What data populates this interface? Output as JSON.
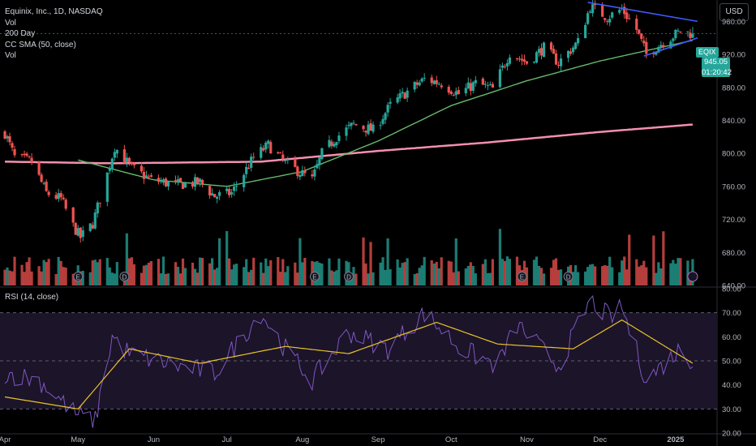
{
  "legend": {
    "title": "Equinix, Inc., 1D, NASDAQ",
    "lines": [
      "Vol",
      "200 Day",
      "CC SMA (50, close)",
      "Vol"
    ]
  },
  "rsi_legend": "RSI (14, close)",
  "currency": "USD",
  "price_tag": {
    "symbol": "EQIX",
    "price": "945.05",
    "countdown": "01:20:42"
  },
  "colors": {
    "up": "#26a69a",
    "down": "#ef5350",
    "sma200": "#f48fb1",
    "sma50": "#66bb6a",
    "trendline": "#3f5bff",
    "rsi": "#7e57c2",
    "rsi_ma": "#e6c229",
    "band": "#1c1429"
  },
  "chart_data": [
    {
      "type": "candlestick",
      "title": "Equinix, Inc., 1D, NASDAQ",
      "ylim": [
        640,
        980
      ],
      "y_ticks": [
        "960.00",
        "920.00",
        "880.00",
        "840.00",
        "800.00",
        "760.00",
        "720.00",
        "680.00",
        "640.00"
      ],
      "x_ticks": [
        "Apr",
        "May",
        "Jun",
        "Jul",
        "Aug",
        "Sep",
        "Oct",
        "Nov",
        "Dec",
        "2025"
      ],
      "last_price": 945.05,
      "price_anchors": [
        {
          "date": "2024-04-01",
          "close": 825
        },
        {
          "date": "2024-04-05",
          "close": 795
        },
        {
          "date": "2024-04-12",
          "close": 790
        },
        {
          "date": "2024-04-18",
          "close": 752
        },
        {
          "date": "2024-04-24",
          "close": 745
        },
        {
          "date": "2024-04-29",
          "close": 712
        },
        {
          "date": "2024-05-02",
          "close": 698
        },
        {
          "date": "2024-05-07",
          "close": 715
        },
        {
          "date": "2024-05-13",
          "close": 775
        },
        {
          "date": "2024-05-16",
          "close": 808
        },
        {
          "date": "2024-05-23",
          "close": 782
        },
        {
          "date": "2024-05-31",
          "close": 768
        },
        {
          "date": "2024-06-10",
          "close": 762
        },
        {
          "date": "2024-06-20",
          "close": 765
        },
        {
          "date": "2024-06-26",
          "close": 748
        },
        {
          "date": "2024-07-03",
          "close": 752
        },
        {
          "date": "2024-07-12",
          "close": 795
        },
        {
          "date": "2024-07-18",
          "close": 810
        },
        {
          "date": "2024-07-25",
          "close": 788
        },
        {
          "date": "2024-08-05",
          "close": 768
        },
        {
          "date": "2024-08-09",
          "close": 800
        },
        {
          "date": "2024-08-15",
          "close": 820
        },
        {
          "date": "2024-08-22",
          "close": 835
        },
        {
          "date": "2024-08-30",
          "close": 828
        },
        {
          "date": "2024-09-06",
          "close": 858
        },
        {
          "date": "2024-09-13",
          "close": 875
        },
        {
          "date": "2024-09-20",
          "close": 890
        },
        {
          "date": "2024-09-27",
          "close": 885
        },
        {
          "date": "2024-10-04",
          "close": 872
        },
        {
          "date": "2024-10-11",
          "close": 885
        },
        {
          "date": "2024-10-18",
          "close": 878
        },
        {
          "date": "2024-10-25",
          "close": 922
        },
        {
          "date": "2024-11-01",
          "close": 910
        },
        {
          "date": "2024-11-08",
          "close": 928
        },
        {
          "date": "2024-11-14",
          "close": 910
        },
        {
          "date": "2024-11-22",
          "close": 935
        },
        {
          "date": "2024-11-27",
          "close": 978
        },
        {
          "date": "2024-12-04",
          "close": 965
        },
        {
          "date": "2024-12-10",
          "close": 975
        },
        {
          "date": "2024-12-16",
          "close": 950
        },
        {
          "date": "2024-12-20",
          "close": 920
        },
        {
          "date": "2024-12-27",
          "close": 935
        },
        {
          "date": "2025-01-03",
          "close": 948
        },
        {
          "date": "2025-01-08",
          "close": 945.05
        }
      ],
      "sma200_anchors": [
        {
          "date": "2024-04-01",
          "value": 790
        },
        {
          "date": "2024-05-15",
          "value": 788
        },
        {
          "date": "2024-07-15",
          "value": 790
        },
        {
          "date": "2024-09-01",
          "value": 803
        },
        {
          "date": "2024-10-15",
          "value": 813
        },
        {
          "date": "2024-12-01",
          "value": 826
        },
        {
          "date": "2025-01-08",
          "value": 835
        }
      ],
      "sma50_anchors": [
        {
          "date": "2024-05-01",
          "value": 792
        },
        {
          "date": "2024-06-01",
          "value": 768
        },
        {
          "date": "2024-07-01",
          "value": 760
        },
        {
          "date": "2024-08-01",
          "value": 778
        },
        {
          "date": "2024-09-01",
          "value": 815
        },
        {
          "date": "2024-10-01",
          "value": 858
        },
        {
          "date": "2024-11-01",
          "value": 888
        },
        {
          "date": "2024-12-01",
          "value": 912
        },
        {
          "date": "2025-01-08",
          "value": 937
        }
      ],
      "trendlines": [
        {
          "start": {
            "date": "2024-11-26",
            "value": 983
          },
          "end": {
            "date": "2025-01-10",
            "value": 960
          }
        },
        {
          "start": {
            "date": "2024-12-19",
            "value": 918
          },
          "end": {
            "date": "2025-01-10",
            "value": 940
          }
        }
      ]
    },
    {
      "type": "line",
      "title": "RSI (14, close)",
      "ylim": [
        20,
        80
      ],
      "y_ticks": [
        "80.00",
        "70.00",
        "60.00",
        "50.00",
        "40.00",
        "30.00",
        "20.00"
      ],
      "bands": [
        30,
        70
      ],
      "rsi_anchors": [
        {
          "date": "2024-04-01",
          "value": 45
        },
        {
          "date": "2024-04-15",
          "value": 42
        },
        {
          "date": "2024-04-30",
          "value": 28
        },
        {
          "date": "2024-05-08",
          "value": 25
        },
        {
          "date": "2024-05-15",
          "value": 60
        },
        {
          "date": "2024-05-22",
          "value": 53
        },
        {
          "date": "2024-06-10",
          "value": 48
        },
        {
          "date": "2024-06-26",
          "value": 45
        },
        {
          "date": "2024-07-15",
          "value": 70
        },
        {
          "date": "2024-07-25",
          "value": 55
        },
        {
          "date": "2024-08-05",
          "value": 42
        },
        {
          "date": "2024-08-20",
          "value": 62
        },
        {
          "date": "2024-09-05",
          "value": 55
        },
        {
          "date": "2024-09-20",
          "value": 70
        },
        {
          "date": "2024-10-05",
          "value": 55
        },
        {
          "date": "2024-10-20",
          "value": 48
        },
        {
          "date": "2024-10-28",
          "value": 65
        },
        {
          "date": "2024-11-14",
          "value": 48
        },
        {
          "date": "2024-11-27",
          "value": 75
        },
        {
          "date": "2024-12-05",
          "value": 68
        },
        {
          "date": "2024-12-10",
          "value": 72
        },
        {
          "date": "2024-12-20",
          "value": 42
        },
        {
          "date": "2025-01-03",
          "value": 55
        },
        {
          "date": "2025-01-08",
          "value": 50
        }
      ],
      "rsi_ma_anchors": [
        {
          "date": "2024-04-01",
          "value": 35
        },
        {
          "date": "2024-05-01",
          "value": 30
        },
        {
          "date": "2024-05-22",
          "value": 55
        },
        {
          "date": "2024-06-20",
          "value": 49
        },
        {
          "date": "2024-07-25",
          "value": 56
        },
        {
          "date": "2024-08-20",
          "value": 53
        },
        {
          "date": "2024-09-25",
          "value": 66
        },
        {
          "date": "2024-10-20",
          "value": 57
        },
        {
          "date": "2024-11-20",
          "value": 55
        },
        {
          "date": "2024-12-10",
          "value": 67
        },
        {
          "date": "2025-01-08",
          "value": 49
        }
      ]
    }
  ]
}
